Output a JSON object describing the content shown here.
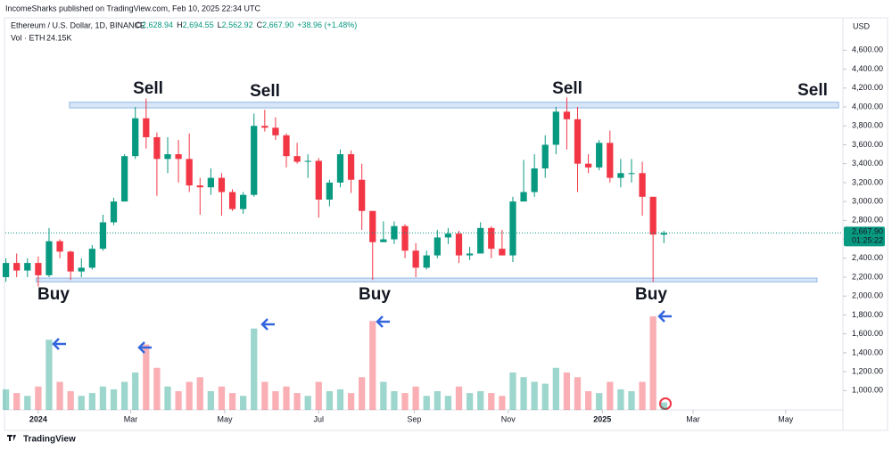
{
  "chart_data": {
    "type": "candlestick",
    "publisher": "IncomeSharks published on TradingView.com, Feb 10, 2025 22:34 UTC",
    "symbol": "Ethereum / U.S. Dollar, 1D, BINANCE",
    "ohlc_legend": [
      {
        "key": "O",
        "value": "2,628.94"
      },
      {
        "key": "H",
        "value": "2,694.55"
      },
      {
        "key": "L",
        "value": "2,562.92"
      },
      {
        "key": "C",
        "value": "2,667.90"
      }
    ],
    "change": "+38.96 (+1.48%)",
    "volume_legend": {
      "key": "Vol · ETH",
      "value": "24.15K"
    },
    "currency": "USD",
    "last_price": {
      "value": 2667.9,
      "label": "2,667.90"
    },
    "countdown": "01:25:22",
    "brand": "TradingView",
    "up_color": "#089981",
    "down_color": "#f23645",
    "zone_color": "#90b8e8",
    "annotation_color": "#3366dd",
    "annotations": [
      "Sell",
      "Sell",
      "Sell",
      "Sell",
      "Buy",
      "Buy",
      "Buy"
    ],
    "zones": [
      [
        3990,
        4050
      ],
      [
        2150,
        2190
      ]
    ],
    "open": [
      2200,
      2350,
      2270,
      2350,
      2220,
      2580,
      2470,
      2260,
      2300,
      2500,
      2780,
      3000,
      3480,
      3880,
      3680,
      3450,
      3500,
      3450,
      3170,
      3150,
      3250,
      3100,
      2920,
      3070,
      3800,
      3780,
      3700,
      3480,
      3420,
      3430,
      3020,
      3200,
      3500,
      3230,
      2900,
      2570,
      2600,
      2740,
      2480,
      2300,
      2430,
      2620,
      2660,
      2430,
      2450,
      2720,
      2500,
      2430,
      3000,
      3100,
      3350,
      3600,
      3950,
      3870,
      3400,
      3360,
      3620,
      3250,
      3300,
      3300,
      3050,
      2650
    ],
    "high": [
      2400,
      2450,
      2400,
      2420,
      2720,
      2600,
      2480,
      2400,
      2540,
      2860,
      3040,
      3500,
      4000,
      4090,
      3730,
      3680,
      3650,
      3720,
      3250,
      3350,
      3300,
      3130,
      3100,
      3930,
      3970,
      3890,
      3720,
      3620,
      3500,
      3460,
      3230,
      3550,
      3540,
      3400,
      2900,
      2790,
      2790,
      2760,
      2560,
      2480,
      2700,
      2720,
      2690,
      2520,
      2780,
      2740,
      2700,
      3050,
      3440,
      3500,
      3700,
      4000,
      4100,
      4000,
      3500,
      3650,
      3750,
      3450,
      3450,
      3420,
      3050,
      2690
    ],
    "low": [
      2150,
      2200,
      2200,
      2100,
      2200,
      2400,
      2170,
      2200,
      2280,
      2480,
      2750,
      3000,
      3450,
      3560,
      3060,
      3300,
      3200,
      3100,
      2860,
      3070,
      2850,
      2900,
      2870,
      3050,
      3740,
      3650,
      3360,
      3400,
      3250,
      2830,
      2950,
      3150,
      3090,
      2700,
      2170,
      2570,
      2550,
      2400,
      2200,
      2280,
      2400,
      2550,
      2350,
      2380,
      2450,
      2400,
      2430,
      2360,
      3000,
      3050,
      3250,
      3500,
      3550,
      3100,
      3300,
      3330,
      3200,
      3150,
      3200,
      2850,
      2150,
      2560
    ],
    "close": [
      2350,
      2270,
      2350,
      2220,
      2580,
      2470,
      2260,
      2300,
      2500,
      2780,
      3000,
      3480,
      3880,
      3680,
      3450,
      3500,
      3450,
      3170,
      3150,
      3250,
      3100,
      2920,
      3070,
      3800,
      3780,
      3700,
      3480,
      3420,
      3430,
      3020,
      3200,
      3500,
      3230,
      2900,
      2570,
      2600,
      2740,
      2480,
      2300,
      2430,
      2620,
      2660,
      2430,
      2450,
      2720,
      2500,
      2430,
      3000,
      3100,
      3350,
      3600,
      3950,
      3870,
      3400,
      3360,
      3620,
      3250,
      3300,
      3300,
      3050,
      2650,
      2668
    ],
    "volume": [
      22,
      18,
      15,
      25,
      75,
      30,
      20,
      15,
      18,
      25,
      22,
      30,
      40,
      70,
      45,
      25,
      20,
      30,
      35,
      20,
      25,
      18,
      15,
      87,
      30,
      20,
      25,
      18,
      15,
      30,
      20,
      22,
      18,
      35,
      95,
      30,
      20,
      18,
      25,
      15,
      20,
      15,
      25,
      18,
      20,
      18,
      15,
      40,
      35,
      30,
      28,
      45,
      40,
      35,
      20,
      18,
      30,
      22,
      20,
      30,
      100,
      8
    ],
    "vlim": [
      0,
      100
    ],
    "xlim": [
      -0.05,
      77.6
    ],
    "xticks": [
      {
        "value": 3,
        "label": "2024"
      },
      {
        "value": 11.57,
        "label": "Mar"
      },
      {
        "value": 20.29,
        "label": "May"
      },
      {
        "value": 29,
        "label": "Jul"
      },
      {
        "value": 37.86,
        "label": "Sep"
      },
      {
        "value": 46.57,
        "label": "Nov"
      },
      {
        "value": 55.29,
        "label": "2025"
      },
      {
        "value": 63.71,
        "label": "Mar"
      },
      {
        "value": 72.29,
        "label": "May"
      }
    ],
    "ylim": [
      796,
      4754
    ],
    "yticks": [
      {
        "value": 1000,
        "label": "1,000.00"
      },
      {
        "value": 1200,
        "label": "1,200.00"
      },
      {
        "value": 1400,
        "label": "1,400.00"
      },
      {
        "value": 1600,
        "label": "1,600.00"
      },
      {
        "value": 1800,
        "label": "1,800.00"
      },
      {
        "value": 2000,
        "label": "2,000.00"
      },
      {
        "value": 2200,
        "label": "2,200.00"
      },
      {
        "value": 2400,
        "label": "2,400.00"
      },
      {
        "value": 2600,
        "label": "2,600.00"
      },
      {
        "value": 2800,
        "label": "2,800.00"
      },
      {
        "value": 3000,
        "label": "3,000.00"
      },
      {
        "value": 3200,
        "label": "3,200.00"
      },
      {
        "value": 3400,
        "label": "3,400.00"
      },
      {
        "value": 3600,
        "label": "3,600.00"
      },
      {
        "value": 3800,
        "label": "3,800.00"
      },
      {
        "value": 4000,
        "label": "4,000.00"
      },
      {
        "value": 4200,
        "label": "4,200.00"
      },
      {
        "value": 4400,
        "label": "4,400.00"
      },
      {
        "value": 4600,
        "label": "4,600.00"
      }
    ],
    "grid": false
  }
}
